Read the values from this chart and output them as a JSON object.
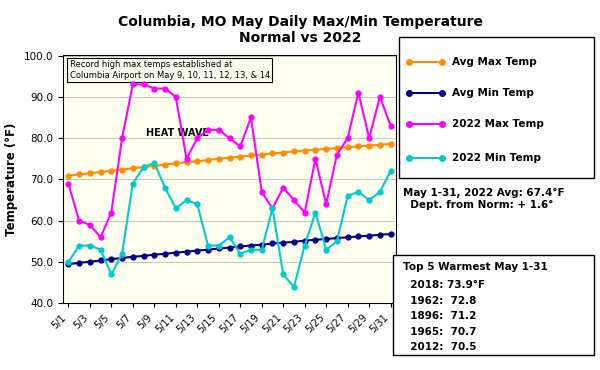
{
  "title": "Columbia, MO May Daily Max/Min Temperature\nNormal vs 2022",
  "xlabel": "",
  "ylabel": "Temperature (°F)",
  "ylim": [
    40.0,
    100.0
  ],
  "yticks": [
    40.0,
    50.0,
    60.0,
    70.0,
    80.0,
    90.0,
    100.0
  ],
  "days": [
    1,
    2,
    3,
    4,
    5,
    6,
    7,
    8,
    9,
    10,
    11,
    12,
    13,
    14,
    15,
    16,
    17,
    18,
    19,
    20,
    21,
    22,
    23,
    24,
    25,
    26,
    27,
    28,
    29,
    30,
    31
  ],
  "xlabels": [
    "5/1",
    "5/3",
    "5/5",
    "5/7",
    "5/9",
    "5/11",
    "5/13",
    "5/15",
    "5/17",
    "5/19",
    "5/21",
    "5/23",
    "5/25",
    "5/27",
    "5/29",
    "5/31"
  ],
  "xtick_positions": [
    1,
    3,
    5,
    7,
    9,
    11,
    13,
    15,
    17,
    19,
    21,
    23,
    25,
    27,
    29,
    31
  ],
  "avg_max": [
    70.9,
    71.2,
    71.5,
    71.8,
    72.1,
    72.4,
    72.7,
    73.0,
    73.3,
    73.6,
    73.9,
    74.2,
    74.4,
    74.7,
    75.0,
    75.3,
    75.5,
    75.8,
    76.0,
    76.3,
    76.5,
    76.8,
    77.0,
    77.2,
    77.4,
    77.6,
    77.8,
    78.0,
    78.2,
    78.4,
    78.6
  ],
  "avg_min": [
    49.5,
    49.8,
    50.1,
    50.4,
    50.7,
    51.0,
    51.3,
    51.5,
    51.8,
    52.0,
    52.3,
    52.5,
    52.8,
    53.0,
    53.3,
    53.5,
    53.8,
    54.0,
    54.2,
    54.5,
    54.7,
    54.9,
    55.2,
    55.4,
    55.6,
    55.8,
    56.0,
    56.2,
    56.4,
    56.6,
    56.8
  ],
  "max_2022": [
    69,
    60,
    59,
    56,
    62,
    80,
    93,
    93,
    92,
    92,
    90,
    75,
    80,
    82,
    82,
    80,
    78,
    85,
    67,
    63,
    68,
    65,
    62,
    75,
    64,
    76,
    80,
    91,
    80,
    90,
    83
  ],
  "min_2022": [
    50,
    54,
    54,
    53,
    47,
    52,
    69,
    73,
    74,
    68,
    63,
    65,
    64,
    54,
    54,
    56,
    52,
    53,
    53,
    63,
    47,
    44,
    54,
    62,
    53,
    55,
    66,
    67,
    65,
    67,
    72
  ],
  "colors": {
    "avg_max": "#FF8C00",
    "avg_min": "#00008B",
    "max_2022": "#FF00FF",
    "min_2022": "#00CCCC",
    "bg_plot": "#FFFFF0",
    "annotation_box": "#FFFFF0"
  },
  "annotation_text": "Record high max temps established at\nColumbia Airport on May 9, 10, 11, 12, 13, & 14",
  "heat_wave_text": "HEAT WAVE",
  "stats_text": "May 1-31, 2022 Avg: 67.4°F\n  Dept. from Norm: + 1.6°",
  "top5_title": "Top 5 Warmest May 1-31",
  "top5_lines": [
    "  2018: 73.9°F",
    "  1962:  72.8",
    "  1896:  71.2",
    "  1965:  70.7",
    "  2012:  70.5"
  ],
  "legend_entries": [
    "Avg Max Temp",
    "Avg Min Temp",
    "2022 Max Temp",
    "2022 Min Temp"
  ],
  "legend_colors": [
    "#FF8C00",
    "#00008B",
    "#FF00FF",
    "#00CCCC"
  ]
}
